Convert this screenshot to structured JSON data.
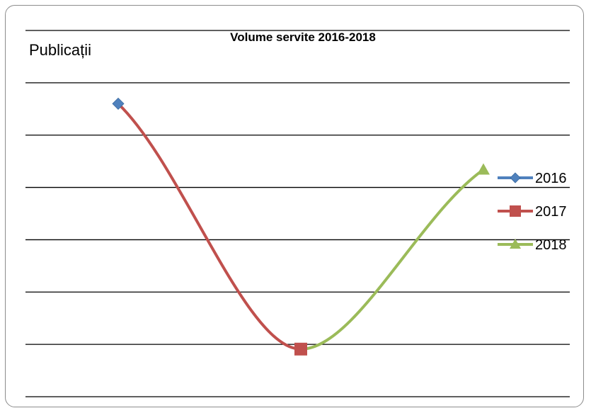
{
  "chart_data": {
    "type": "line",
    "title": "Volume servite 2016-2018",
    "ylabel": "Publicații",
    "xlabel": "",
    "y_tick_labels_shown": false,
    "grid": "horizontal",
    "legend_position": "right",
    "y_range_relative": [
      0,
      1
    ],
    "series": [
      {
        "name": "2016",
        "color": "#4F81BD",
        "marker": "diamond",
        "x": [
          1
        ],
        "values": [
          0.8
        ]
      },
      {
        "name": "2017",
        "color": "#C0504D",
        "marker": "square",
        "x": [
          1,
          2
        ],
        "values": [
          0.8,
          0.13
        ]
      },
      {
        "name": "2018",
        "color": "#9BBB59",
        "marker": "triangle",
        "x": [
          2,
          3
        ],
        "values": [
          0.13,
          0.62
        ]
      }
    ]
  }
}
